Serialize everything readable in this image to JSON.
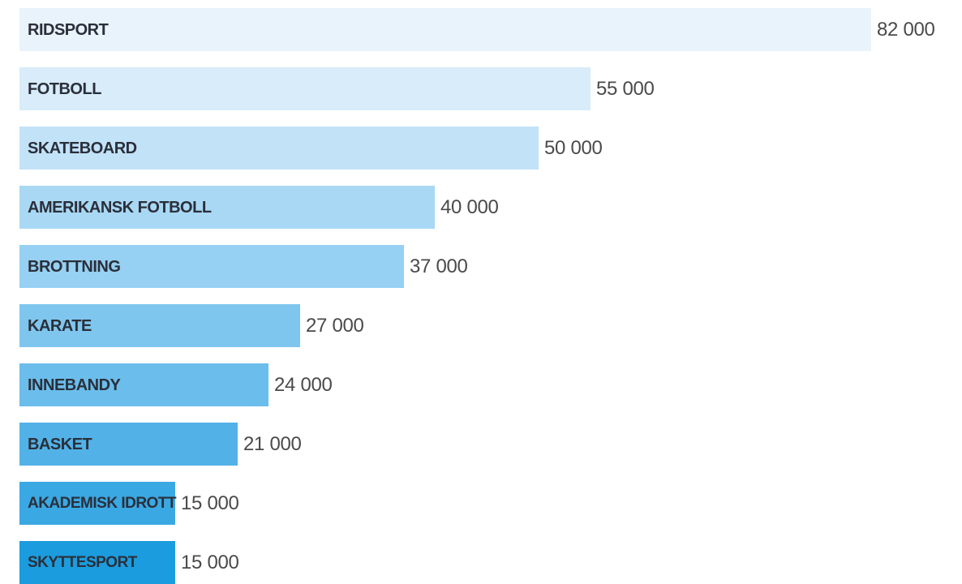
{
  "chart_data": {
    "type": "bar",
    "orientation": "horizontal",
    "categories": [
      "RIDSPORT",
      "FOTBOLL",
      "SKATEBOARD",
      "AMERIKANSK FOTBOLL",
      "BROTTNING",
      "KARATE",
      "INNEBANDY",
      "BASKET",
      "AKADEMISK IDROTT",
      "SKYTTESPORT"
    ],
    "values": [
      82000,
      55000,
      50000,
      40000,
      37000,
      27000,
      24000,
      21000,
      15000,
      15000
    ],
    "value_labels": [
      "82 000",
      "55 000",
      "50 000",
      "40 000",
      "37 000",
      "27 000",
      "24 000",
      "21 000",
      "15 000",
      "15 000"
    ],
    "colors": [
      "#e9f3fc",
      "#d8ecfa",
      "#c2e2f8",
      "#a9d8f4",
      "#96d0f2",
      "#7fc6ee",
      "#6bbdeb",
      "#52b2e7",
      "#3aa8e3",
      "#1b9cde"
    ],
    "label_color": "#2a2f3a",
    "value_color": "#4a4a4a",
    "title": "",
    "xlabel": "",
    "ylabel": "",
    "xlim": [
      0,
      82000
    ],
    "grid": false,
    "legend": "none"
  }
}
